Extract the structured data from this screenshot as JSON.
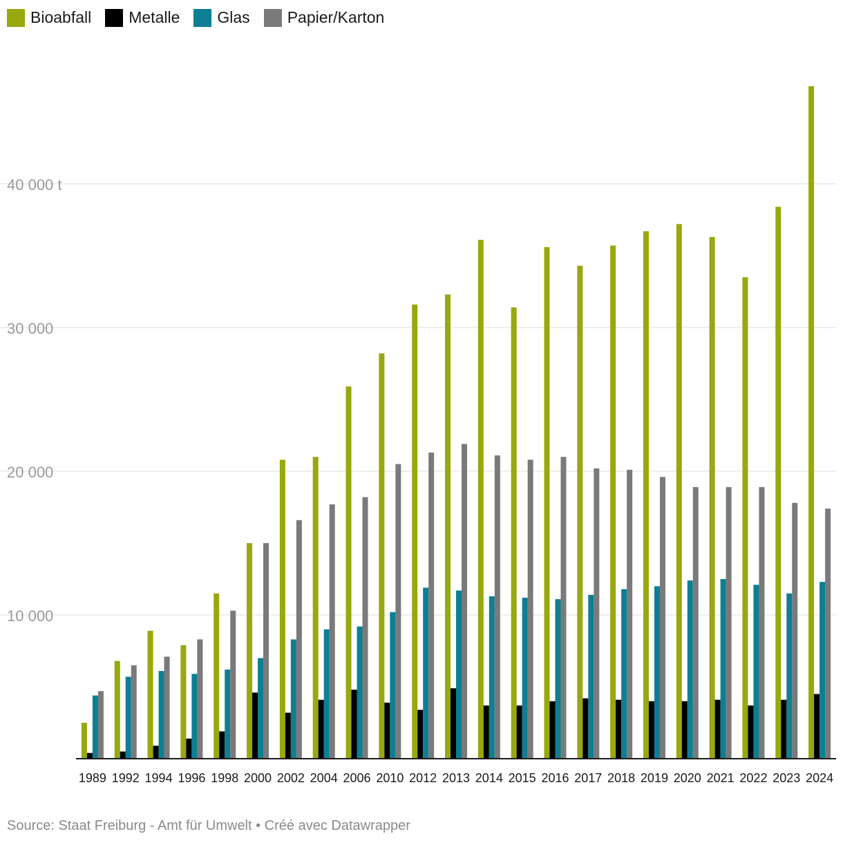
{
  "chart_data": {
    "type": "bar",
    "categories": [
      "1989",
      "1992",
      "1994",
      "1996",
      "1998",
      "2000",
      "2002",
      "2004",
      "2006",
      "2010",
      "2012",
      "2013",
      "2014",
      "2015",
      "2016",
      "2017",
      "2018",
      "2019",
      "2020",
      "2021",
      "2022",
      "2023",
      "2024"
    ],
    "series": [
      {
        "name": "Bioabfall",
        "color": "#98a80e",
        "values": [
          2500,
          6800,
          8900,
          7900,
          11500,
          15000,
          20800,
          21000,
          25900,
          28200,
          31600,
          32300,
          36100,
          31400,
          35600,
          34300,
          35700,
          36700,
          37200,
          36300,
          33500,
          38400,
          46800
        ]
      },
      {
        "name": "Metalle",
        "color": "#000000",
        "values": [
          400,
          500,
          900,
          1400,
          1900,
          4600,
          3200,
          4100,
          4800,
          3900,
          3400,
          4900,
          3700,
          3700,
          4000,
          4200,
          4100,
          4000,
          4000,
          4100,
          3700,
          4100,
          4500
        ]
      },
      {
        "name": "Glas",
        "color": "#0e7e93",
        "values": [
          4400,
          5700,
          6100,
          5900,
          6200,
          7000,
          8300,
          9000,
          9200,
          10200,
          11900,
          11700,
          11300,
          11200,
          11100,
          11400,
          11800,
          12000,
          12400,
          12500,
          12100,
          11500,
          12300
        ]
      },
      {
        "name": "Papier/Karton",
        "color": "#7a7a7a",
        "values": [
          4700,
          6500,
          7100,
          8300,
          10300,
          15000,
          16600,
          17700,
          18200,
          20500,
          21300,
          21900,
          21100,
          20800,
          21000,
          20200,
          20100,
          19600,
          18900,
          18900,
          18900,
          17800,
          17400
        ]
      }
    ],
    "yticks": [
      {
        "value": 10000,
        "label": "10 000"
      },
      {
        "value": 20000,
        "label": "20 000"
      },
      {
        "value": 30000,
        "label": "30 000"
      },
      {
        "value": 40000,
        "label": "40 000 t"
      }
    ],
    "ylim": [
      0,
      48000
    ],
    "grid": true,
    "legend_position": "top-left"
  },
  "source_text": "Source: Staat Freiburg - Amt für Umwelt • Créé avec Datawrapper"
}
